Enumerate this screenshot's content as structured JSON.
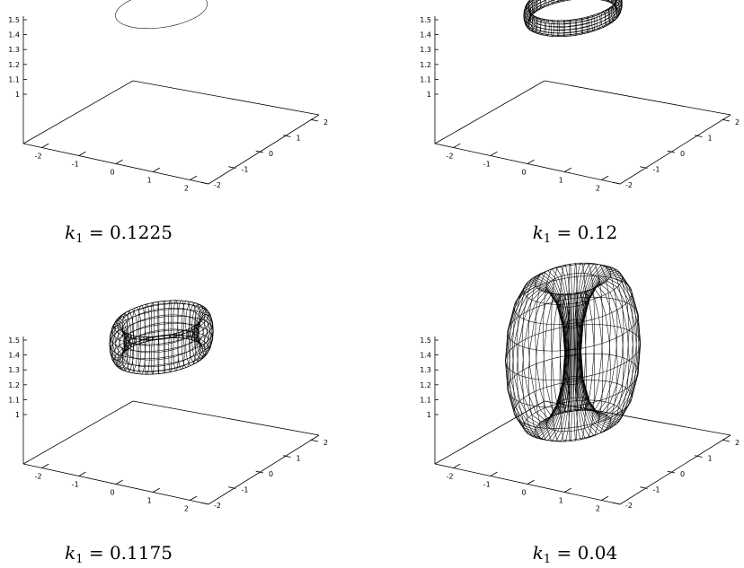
{
  "chart_data": [
    {
      "type": "surface3d",
      "k1_label": "k",
      "k1_subscript": "1",
      "k1_value": "0.1225",
      "zticks": [
        "1.5",
        "1.4",
        "1.3",
        "1.2",
        "1.1",
        "1"
      ],
      "xticks": [
        "-2",
        "-1",
        "0",
        "1",
        "2"
      ],
      "yticks": [
        "-2",
        "-1",
        "0",
        "1",
        "2"
      ],
      "zlim": [
        1.0,
        1.5
      ],
      "xlim": [
        -2.5,
        2.5
      ],
      "ylim": [
        -2,
        2
      ],
      "surface": {
        "shape": "ring",
        "tube_radius": 0.0,
        "major_radius": 0.85,
        "height": 1.45
      }
    },
    {
      "type": "surface3d",
      "k1_label": "k",
      "k1_subscript": "1",
      "k1_value": "0.12",
      "zticks": [
        "1.5",
        "1.4",
        "1.3",
        "1.2",
        "1.1",
        "1"
      ],
      "xticks": [
        "-2",
        "-1",
        "0",
        "1",
        "2"
      ],
      "yticks": [
        "-2",
        "-1",
        "0",
        "1",
        "2"
      ],
      "zlim": [
        1.0,
        1.5
      ],
      "xlim": [
        -2.5,
        2.5
      ],
      "ylim": [
        -2,
        2
      ],
      "surface": {
        "shape": "torus",
        "tube_radius": 0.06,
        "major_radius": 0.85,
        "height": 1.45
      }
    },
    {
      "type": "surface3d",
      "k1_label": "k",
      "k1_subscript": "1",
      "k1_value": "0.1175",
      "zticks": [
        "1.5",
        "1.4",
        "1.3",
        "1.2",
        "1.1",
        "1"
      ],
      "xticks": [
        "-2",
        "-1",
        "0",
        "1",
        "2"
      ],
      "yticks": [
        "-2",
        "-1",
        "0",
        "1",
        "2"
      ],
      "zlim": [
        1.0,
        1.5
      ],
      "xlim": [
        -2.5,
        2.5
      ],
      "ylim": [
        -2,
        2
      ],
      "surface": {
        "shape": "torus",
        "tube_radius": 0.14,
        "major_radius": 0.82,
        "height": 1.4
      }
    },
    {
      "type": "surface3d",
      "k1_label": "k",
      "k1_subscript": "1",
      "k1_value": "0.04",
      "zticks": [
        "1.5",
        "1.4",
        "1.3",
        "1.2",
        "1.1",
        "1"
      ],
      "xticks": [
        "-2",
        "-1",
        "0",
        "1",
        "2"
      ],
      "yticks": [
        "-2",
        "-1",
        "0",
        "1",
        "2"
      ],
      "zlim": [
        1.0,
        1.5
      ],
      "xlim": [
        -2.5,
        2.5
      ],
      "ylim": [
        -2,
        2
      ],
      "surface": {
        "shape": "torus",
        "tube_radius": 0.55,
        "major_radius": 0.7,
        "height": 1.3
      }
    }
  ]
}
